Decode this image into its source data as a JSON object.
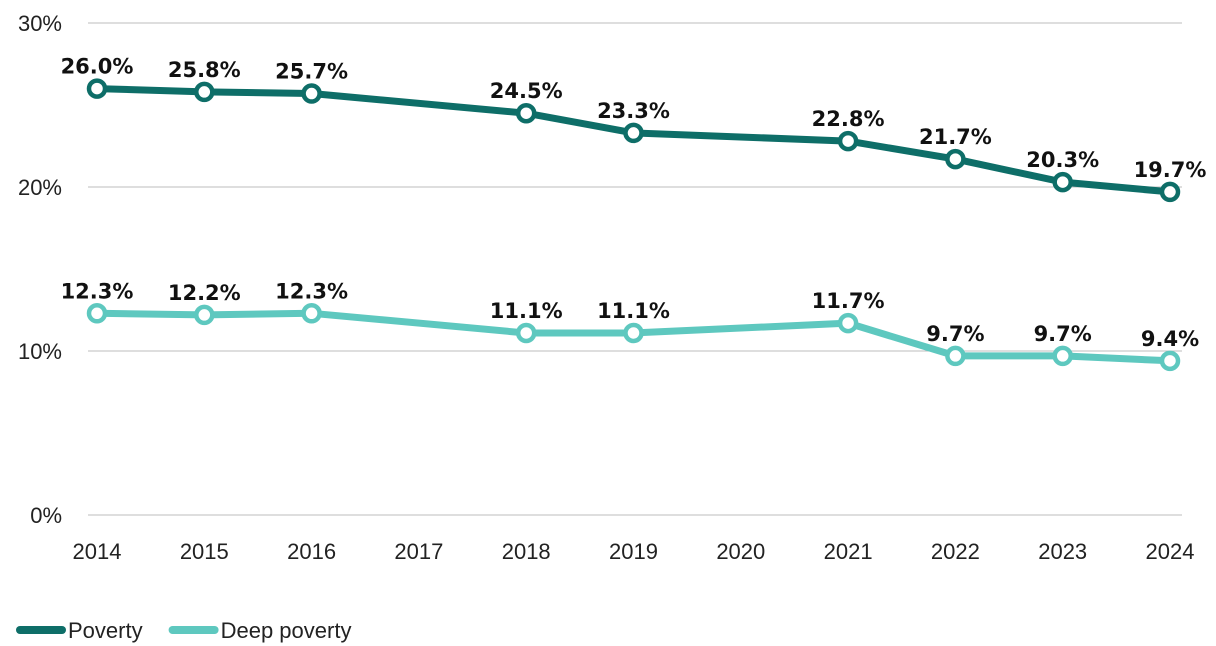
{
  "chart_data": {
    "type": "line",
    "x": [
      "2014",
      "2015",
      "2016",
      "2017",
      "2018",
      "2019",
      "2020",
      "2021",
      "2022",
      "2023",
      "2024"
    ],
    "series": [
      {
        "name": "Poverty",
        "color": "#0e6e68",
        "values": [
          26.0,
          25.8,
          25.7,
          null,
          24.5,
          23.3,
          null,
          22.8,
          21.7,
          20.3,
          19.7
        ],
        "labels": [
          "26.0%",
          "25.8%",
          "25.7%",
          null,
          "24.5%",
          "23.3%",
          null,
          "22.8%",
          "21.7%",
          "20.3%",
          "19.7%"
        ]
      },
      {
        "name": "Deep poverty",
        "color": "#5ec8bf",
        "values": [
          12.3,
          12.2,
          12.3,
          null,
          11.1,
          11.1,
          null,
          11.7,
          9.7,
          9.7,
          9.4
        ],
        "labels": [
          "12.3%",
          "12.2%",
          "12.3%",
          null,
          "11.1%",
          "11.1%",
          null,
          "11.7%",
          "9.7%",
          "9.7%",
          "9.4%"
        ]
      }
    ],
    "ylim": [
      0,
      30
    ],
    "yticks": [
      0,
      10,
      20,
      30
    ],
    "ytick_labels": [
      "0%",
      "10%",
      "20%",
      "30%"
    ],
    "grid": true,
    "legend": "bottom-left",
    "title": "",
    "xlabel": "",
    "ylabel": ""
  }
}
